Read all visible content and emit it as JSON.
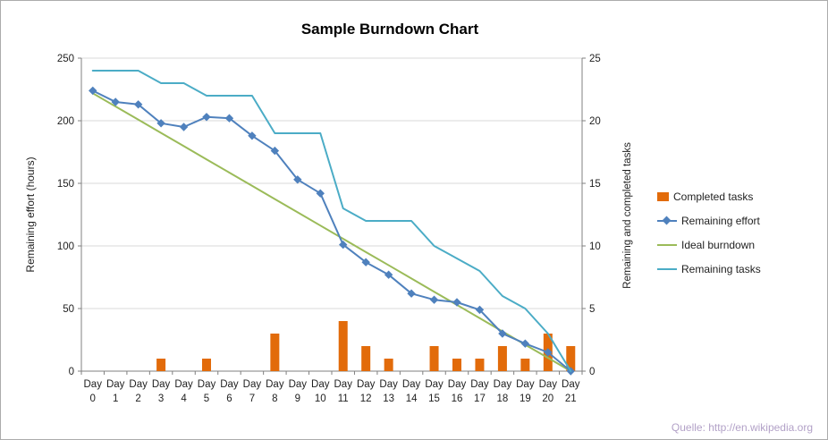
{
  "title": "Sample Burndown Chart",
  "left_axis_label": "Remaining effort (hours)",
  "right_axis_label": "Remaining and  completed tasks",
  "source": "Quelle: http://en.wikipedia.org",
  "legend": [
    {
      "label": "Completed tasks",
      "swatch": "bar",
      "color": "#E26B0A"
    },
    {
      "label": "Remaining effort",
      "swatch": "line-diamond",
      "color": "#4F81BD"
    },
    {
      "label": "Ideal burndown",
      "swatch": "line",
      "color": "#9BBB59"
    },
    {
      "label": "Remaining tasks",
      "swatch": "line",
      "color": "#4BACC6"
    }
  ],
  "chart_data": {
    "type": "combo",
    "categories": [
      "Day 0",
      "Day 1",
      "Day 2",
      "Day 3",
      "Day 4",
      "Day 5",
      "Day 6",
      "Day 7",
      "Day 8",
      "Day 9",
      "Day 10",
      "Day 11",
      "Day 12",
      "Day 13",
      "Day 14",
      "Day 15",
      "Day 16",
      "Day 17",
      "Day 18",
      "Day 19",
      "Day 20",
      "Day 21"
    ],
    "left_axis": {
      "label": "Remaining effort (hours)",
      "min": 0,
      "max": 250,
      "step": 50
    },
    "right_axis": {
      "label": "Remaining and completed tasks",
      "min": 0,
      "max": 25,
      "step": 5
    },
    "gridlines": true,
    "legend_position": "right",
    "series": [
      {
        "name": "Completed tasks",
        "type": "bar",
        "axis": "right",
        "color": "#E26B0A",
        "values": [
          0,
          0,
          0,
          1,
          0,
          1,
          0,
          0,
          3,
          0,
          0,
          4,
          2,
          1,
          0,
          2,
          1,
          1,
          2,
          1,
          3,
          2
        ]
      },
      {
        "name": "Remaining effort",
        "type": "line",
        "marker": "diamond",
        "axis": "left",
        "color": "#4F81BD",
        "values": [
          224,
          215,
          213,
          198,
          195,
          203,
          202,
          188,
          176,
          153,
          142,
          101,
          87,
          77,
          62,
          57,
          55,
          49,
          30,
          22,
          15,
          0
        ]
      },
      {
        "name": "Ideal burndown",
        "type": "line",
        "axis": "left",
        "color": "#9BBB59",
        "values": [
          222,
          211.4,
          200.9,
          190.3,
          179.7,
          169.1,
          158.6,
          148,
          137.4,
          126.9,
          116.3,
          105.7,
          95.1,
          84.6,
          74,
          63.4,
          52.9,
          42.3,
          31.7,
          21.1,
          10.6,
          0
        ]
      },
      {
        "name": "Remaining tasks",
        "type": "line",
        "axis": "right",
        "color": "#4BACC6",
        "values": [
          24,
          24,
          24,
          23,
          23,
          22,
          22,
          22,
          19,
          19,
          19,
          13,
          12,
          12,
          12,
          10,
          9,
          8,
          6,
          5,
          3,
          0
        ]
      }
    ]
  }
}
